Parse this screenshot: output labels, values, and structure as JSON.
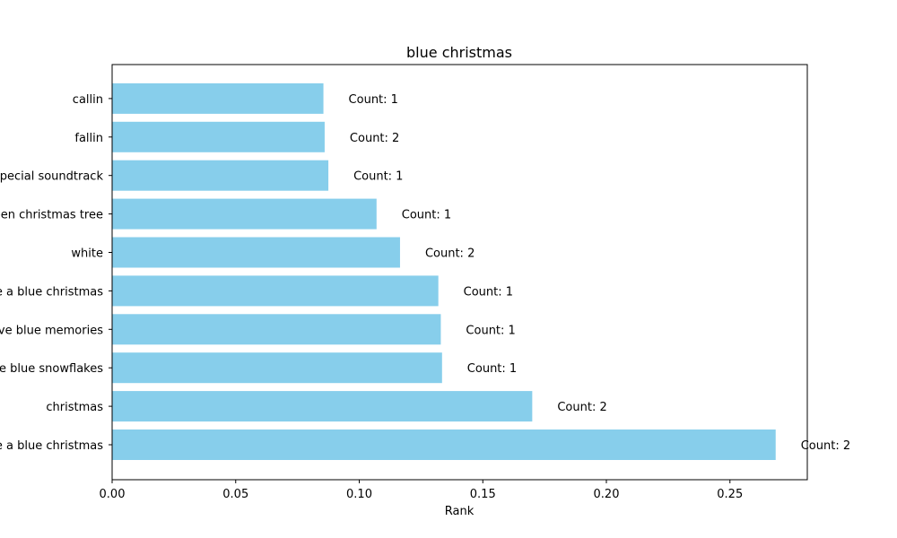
{
  "chart_data": {
    "type": "bar",
    "orientation": "horizontal",
    "title": "blue christmas",
    "xlabel": "Rank",
    "ylabel": "",
    "xlim": [
      0,
      0.2813
    ],
    "xticks": [
      "0.00",
      "0.05",
      "0.10",
      "0.15",
      "0.20",
      "0.25"
    ],
    "categories": [
      "you have a blue christmas",
      "christmas",
      "you have blue snowflakes",
      "you have blue memories",
      "you have a blue christmas",
      "white",
      "green christmas tree",
      "special soundtrack",
      "fallin",
      "callin"
    ],
    "values": [
      0.2685,
      0.17,
      0.1335,
      0.133,
      0.132,
      0.1165,
      0.107,
      0.0875,
      0.086,
      0.0855
    ],
    "data_labels": [
      "Count: 2",
      "Count: 2",
      "Count: 1",
      "Count: 1",
      "Count: 1",
      "Count: 2",
      "Count: 1",
      "Count: 1",
      "Count: 2",
      "Count: 1"
    ],
    "bar_color": "#87ceeb",
    "grid": false
  }
}
